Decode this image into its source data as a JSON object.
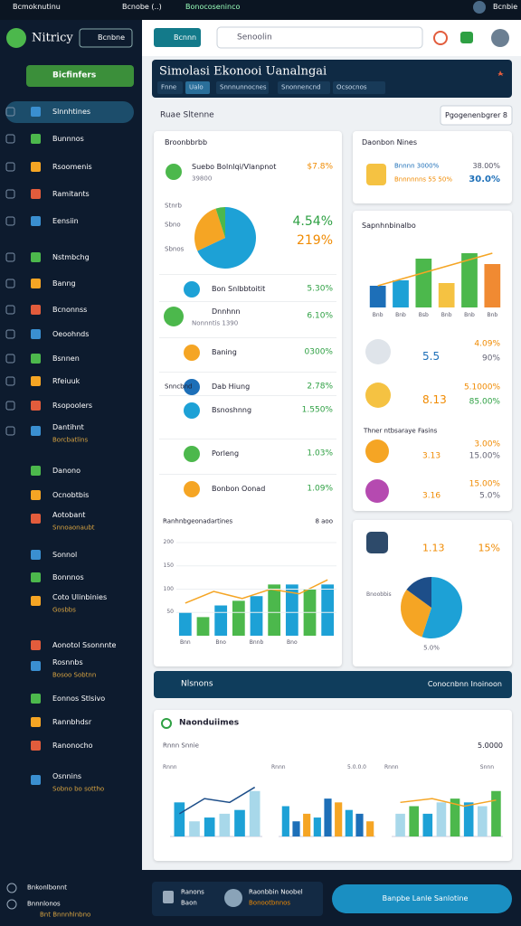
{
  "status_bar": {
    "app": "Bcmoknutinu",
    "tab": "Bcnobe (..)",
    "url": "Bonocoseninco",
    "user": "Bcnbie"
  },
  "sidebar": {
    "brand": "Nitricy",
    "button": "Bcnbne",
    "active": "Bicfinfers",
    "items": [
      {
        "label": "Slnnhtines"
      },
      {
        "label": "Bunnnos"
      },
      {
        "label": "Rsoomenis"
      },
      {
        "label": "Ramitants"
      },
      {
        "label": "Eensiin"
      },
      {
        "label": "Nstmbchg"
      },
      {
        "label": "Banng"
      },
      {
        "label": "Bcnonnss"
      },
      {
        "label": "Oeoohnds"
      },
      {
        "label": "Bsnnen"
      },
      {
        "label": "Rfeiuuk"
      },
      {
        "label": "Rsopoolers"
      },
      {
        "label": "Dantihnt",
        "sub": "Borcbatlins"
      },
      {
        "label": "Danono"
      },
      {
        "label": "Ocnobtbis"
      },
      {
        "label": "Aotobant",
        "sub": "Snnoaonaubt"
      },
      {
        "label": "Sonnol"
      },
      {
        "label": "Bonnnos"
      },
      {
        "label": "Coto Ulinbinies",
        "sub": "Gosbbs"
      },
      {
        "label": "Aonotol Ssonnnte"
      },
      {
        "label": "Rosnnbs",
        "sub": "Bosoo Sobtnn"
      },
      {
        "label": "Eonnos Stlsivo"
      },
      {
        "label": "Rannbhdsr"
      },
      {
        "label": "Ranonocho"
      },
      {
        "label": "Osnnins",
        "sub": "Sobno bo sottho"
      }
    ],
    "footer": [
      {
        "label": "Bnkonlbonnt"
      },
      {
        "label": "Bnnnlonos",
        "sub": "Bnt Bnnnhlnbno"
      }
    ]
  },
  "header": {
    "button": "Bcnnn",
    "search": "Senoolin"
  },
  "banner": {
    "title": "Simolasi Ekonooi Uanalngai",
    "tabs": [
      "Fnne",
      "Ualo",
      "Snnnunnocnes",
      "Snonnencnd",
      "Ocsocnos"
    ]
  },
  "section": {
    "label": "Ruae Sltenne",
    "button": "Pgogenenbgrer 8"
  },
  "left_card": {
    "title": "Broonbbrbb",
    "top_row": {
      "label": "Suebo Bolnlqi/Vlanpnot",
      "sub": "39800",
      "value": "$7.8%"
    },
    "pie": {
      "labels": [
        "Stnrb",
        "Sbno",
        "Sbnos"
      ],
      "values": [
        68,
        27,
        5
      ],
      "colors": [
        "#1da1d6",
        "#f5a524",
        "#4cb84c"
      ],
      "stats": [
        "4.54%",
        "219%"
      ]
    },
    "rows": [
      {
        "label": "Bon Snlbbtoitit",
        "value": "5.30%"
      },
      {
        "label": "Dnnhnn",
        "sub": "Nonnntis 1390",
        "value": "6.10%"
      },
      {
        "label": "Baning",
        "value": "0300%"
      },
      {
        "prefix": "Snncbnd",
        "label": "Dab Hiung",
        "value": "2.78%"
      },
      {
        "label": "Bsnoshnng",
        "value": "1.550%"
      },
      {
        "label": "Porleng",
        "value": "1.03%"
      },
      {
        "label": "Bonbon Oonad",
        "value": "1.09%"
      }
    ],
    "bar_chart": {
      "title": "Ranhnbgeonadartines",
      "note": "8 aoo",
      "ylim": [
        0,
        200
      ],
      "yticks": [
        50,
        100,
        150,
        200
      ],
      "categories": [
        "Bnn",
        null,
        "Bno",
        null,
        "Bnnb",
        null,
        "Bno",
        null,
        null
      ],
      "values": [
        50,
        40,
        65,
        75,
        85,
        110,
        110,
        100,
        110
      ],
      "colors": [
        "#1da1d6",
        "#4cb84c"
      ],
      "trend": [
        70,
        95,
        80,
        100,
        90,
        120
      ],
      "trend_color": "#f5a524"
    }
  },
  "right_top": {
    "title": "Daonbon Nines",
    "rows": [
      {
        "label": "Bnnnn 3000%",
        "value": "38.00%"
      },
      {
        "label": "Bnnnnnns 55 50%",
        "value": "30.0%"
      }
    ]
  },
  "right_chart": {
    "title": "Sapnhnbinalbo",
    "chart": {
      "ylim": [
        0,
        120
      ],
      "categories": [
        "Bnb",
        "Bnb",
        "Bsb",
        "Bnb",
        "Bnb",
        "Bnb"
      ],
      "values": [
        40,
        50,
        90,
        45,
        100,
        80
      ],
      "colors": [
        "#1d6fb8",
        "#1da1d6",
        "#4cb84c",
        "#f5c242",
        "#4cb84c",
        "#f08a32"
      ],
      "trend": [
        40,
        70,
        100
      ],
      "trend_color": "#f5a524"
    },
    "rows": [
      {
        "big": "5.5",
        "value": "4.09%",
        "sub": "90%"
      },
      {
        "big": "8.13",
        "value": "5.1000%",
        "sub": "85.00%"
      }
    ],
    "subtitle": "Thner ntbsaraye Fasins",
    "rows2": [
      {
        "big": "3.13",
        "value": "3.00%",
        "sub": "15.00%"
      },
      {
        "big": "3.16",
        "value": "15.00%",
        "sub": "5.0%"
      }
    ]
  },
  "right_bottom": {
    "big": "1.13",
    "value": "15%",
    "label": "Bnoobbis",
    "foot": "5.0%",
    "pie": {
      "values": [
        55,
        30,
        15
      ],
      "colors": [
        "#1da1d6",
        "#f5a524",
        "#1d4e89"
      ]
    }
  },
  "notice": {
    "title": "Nlsnons",
    "link": "Conocnbnn Inoinoon"
  },
  "bottom_card": {
    "title": "Naonduiimes",
    "label": "Rnnn Snnie",
    "value": "5.0000",
    "charts": [
      {
        "label": "Rnnn",
        "ylim": [
          0,
          80
        ],
        "values": [
          45,
          20,
          25,
          30,
          35,
          60
        ],
        "colors": [
          "#1da1d6",
          "#a8d8ea"
        ],
        "trend": [
          30,
          50,
          45,
          65
        ],
        "trend_color": "#1d4e89"
      },
      {
        "label": "Rnnn",
        "note": "5.0.0.0",
        "ylim": [
          0,
          80
        ],
        "values": [
          40,
          20,
          30,
          25,
          50,
          45,
          35,
          30,
          20
        ],
        "colors": [
          "#1da1d6",
          "#1d6fb8",
          "#f5a524"
        ]
      },
      {
        "label": "Rnnn",
        "note": "Snnn",
        "ylim": [
          0,
          80
        ],
        "values": [
          30,
          40,
          30,
          45,
          50,
          45,
          40,
          60
        ],
        "colors": [
          "#a8d8ea",
          "#4cb84c",
          "#1da1d6"
        ],
        "trend": [
          45,
          50,
          40,
          48
        ],
        "trend_color": "#f5a524"
      }
    ]
  },
  "footer": {
    "title": "Ranons",
    "sub": "Baon",
    "user": "Raonbbin Noobel",
    "role": "Bonootbnnos",
    "button": "Banpbe Lanle Sanlotine"
  }
}
